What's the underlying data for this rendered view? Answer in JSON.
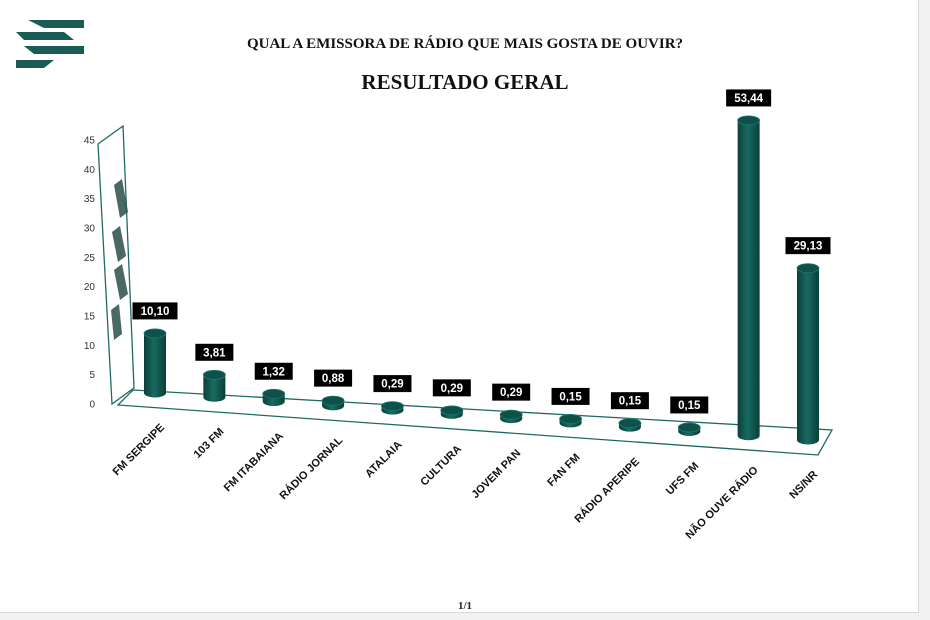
{
  "header": {
    "question": "QUAL A EMISSORA DE RÁDIO QUE MAIS GOSTA DE OUVIR?",
    "title": "RESULTADO GERAL"
  },
  "footer": {
    "page": "1/1"
  },
  "logo": {
    "icon": "striped-f-logo-icon",
    "color": "#1a5c55"
  },
  "chart_data": {
    "type": "bar",
    "style": "3d-cylinder",
    "title": "RESULTADO GERAL",
    "categories": [
      "FM SERGIPE",
      "103 FM",
      "FM ITABAIANA",
      "RÁDIO JORNAL",
      "ATALAIA",
      "CULTURA",
      "JOVEM PAN",
      "FAN FM",
      "RÁDIO APERIPE",
      "UFS FM",
      "NÃO OUVE RÁDIO",
      "NS/NR"
    ],
    "values": [
      10.1,
      3.81,
      1.32,
      0.88,
      0.29,
      0.29,
      0.29,
      0.15,
      0.15,
      0.15,
      53.44,
      29.13
    ],
    "value_labels": [
      "10,10",
      "3,81",
      "1,32",
      "0,88",
      "0,29",
      "0,29",
      "0,29",
      "0,15",
      "0,15",
      "0,15",
      "53,44",
      "29,13"
    ],
    "y_ticks": [
      "0",
      "5",
      "10",
      "15",
      "20",
      "25",
      "30",
      "35",
      "40",
      "45"
    ],
    "ylim": [
      0,
      45
    ],
    "xlabel": "",
    "ylabel": "",
    "grid": false,
    "legend": "none",
    "colors": {
      "bar": "#176b61",
      "bar_dark": "#0c3f39",
      "bar_top": "#0f514a",
      "label_bg": "#000000",
      "label_text": "#ffffff",
      "axis": "#1f6b63"
    }
  }
}
